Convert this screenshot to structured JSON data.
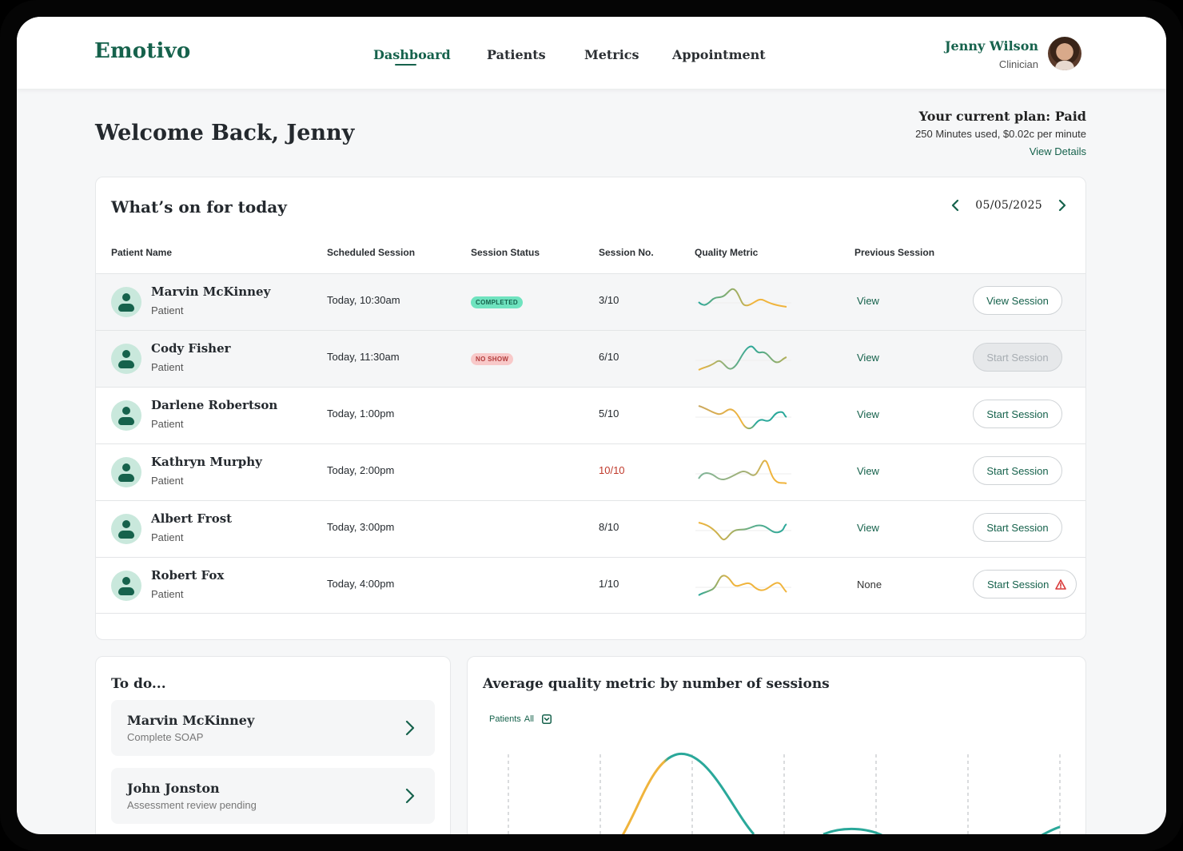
{
  "app": {
    "logo": "Emotivo"
  },
  "nav": [
    {
      "label": "Dashboard",
      "active": true
    },
    {
      "label": "Patients",
      "active": false
    },
    {
      "label": "Metrics",
      "active": false
    },
    {
      "label": "Appointment",
      "active": false
    }
  ],
  "user": {
    "name": "Jenny Wilson",
    "role": "Clinician"
  },
  "welcome": "Welcome Back, Jenny",
  "plan": {
    "title": "Your current plan: Paid",
    "usage": "250 Minutes used, $0.02c per minute",
    "link": "View Details"
  },
  "today": {
    "title": "What’s on for today",
    "date": "05/05/2025",
    "columns": [
      "Patient Name",
      "Scheduled Session",
      "Session Status",
      "Session No.",
      "Quality Metric",
      "Previous Session"
    ],
    "rows": [
      {
        "name": "Marvin McKinney",
        "role": "Patient",
        "time": "Today, 10:30am",
        "status": "COMPLETED",
        "session": "3/10",
        "previous": "View",
        "action": "View Session"
      },
      {
        "name": "Cody Fisher",
        "role": "Patient",
        "time": "Today, 11:30am",
        "status": "NO SHOW",
        "session": "6/10",
        "previous": "View",
        "action": "Start Session"
      },
      {
        "name": "Darlene Robertson",
        "role": "Patient",
        "time": "Today, 1:00pm",
        "status": "",
        "session": "5/10",
        "previous": "View",
        "action": "Start Session"
      },
      {
        "name": "Kathryn Murphy",
        "role": "Patient",
        "time": "Today, 2:00pm",
        "status": "",
        "session": "10/10",
        "previous": "View",
        "action": "Start Session"
      },
      {
        "name": "Albert Frost",
        "role": "Patient",
        "time": "Today, 3:00pm",
        "status": "",
        "session": "8/10",
        "previous": "View",
        "action": "Start Session"
      },
      {
        "name": "Robert Fox",
        "role": "Patient",
        "time": "Today, 4:00pm",
        "status": "",
        "session": "1/10",
        "previous": "None",
        "action": "Start Session"
      }
    ]
  },
  "todo": {
    "title": "To do...",
    "items": [
      {
        "name": "Marvin McKinney",
        "desc": "Complete SOAP"
      },
      {
        "name": "John Jonston",
        "desc": "Assessment review pending"
      }
    ]
  },
  "chart": {
    "title": "Average quality metric by number of sessions",
    "filter_label": "Patients",
    "filter_value": "All"
  },
  "colors": {
    "brand": "#16624c",
    "teal": "#2aa89a",
    "amber": "#f0b43c",
    "alert": "#d93a3a"
  }
}
